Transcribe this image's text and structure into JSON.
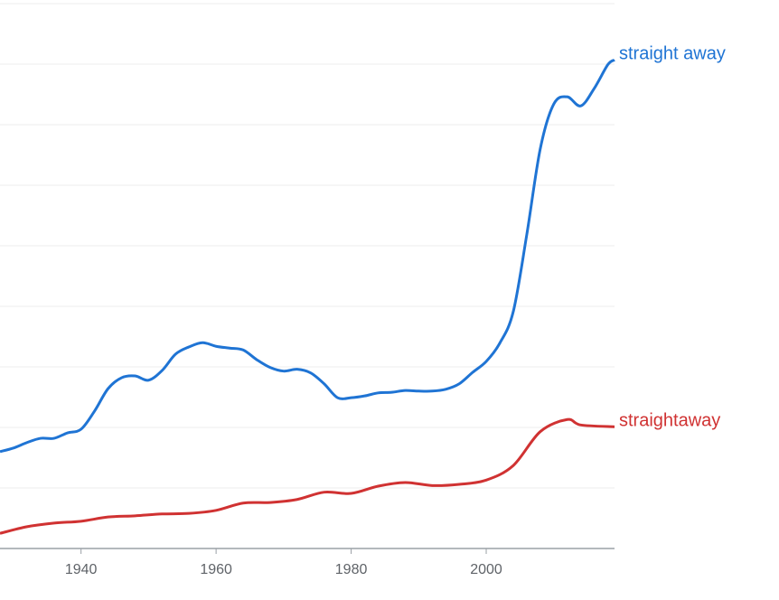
{
  "chart_data": {
    "type": "line",
    "xlim": [
      1928,
      2019
    ],
    "xticks": [
      1940,
      1960,
      1980,
      2000
    ],
    "ylim": [
      0,
      9
    ],
    "yticks": [
      0,
      1,
      2,
      3,
      4,
      5,
      6,
      7,
      8,
      9
    ],
    "grid": true,
    "series": [
      {
        "name": "straight away",
        "color": "#1f74d4",
        "x": [
          1928,
          1930,
          1932,
          1934,
          1936,
          1938,
          1940,
          1942,
          1944,
          1946,
          1948,
          1950,
          1952,
          1954,
          1956,
          1958,
          1960,
          1962,
          1964,
          1966,
          1968,
          1970,
          1972,
          1974,
          1976,
          1978,
          1980,
          1982,
          1984,
          1986,
          1988,
          1990,
          1992,
          1994,
          1996,
          1998,
          2000,
          2002,
          2004,
          2006,
          2008,
          2010,
          2012,
          2014,
          2016,
          2018,
          2019
        ],
        "values": [
          1.6,
          1.66,
          1.75,
          1.82,
          1.82,
          1.91,
          1.97,
          2.27,
          2.64,
          2.82,
          2.85,
          2.78,
          2.94,
          3.21,
          3.33,
          3.4,
          3.34,
          3.31,
          3.28,
          3.12,
          2.99,
          2.93,
          2.96,
          2.9,
          2.72,
          2.49,
          2.49,
          2.52,
          2.57,
          2.58,
          2.61,
          2.6,
          2.6,
          2.63,
          2.72,
          2.91,
          3.09,
          3.39,
          3.91,
          5.18,
          6.6,
          7.34,
          7.46,
          7.31,
          7.6,
          7.99,
          8.07
        ]
      },
      {
        "name": "straightaway",
        "color": "#d03232",
        "x": [
          1928,
          1932,
          1936,
          1940,
          1944,
          1948,
          1952,
          1956,
          1960,
          1964,
          1968,
          1972,
          1976,
          1980,
          1984,
          1988,
          1992,
          1996,
          2000,
          2004,
          2008,
          2012,
          2014,
          2019
        ],
        "values": [
          0.25,
          0.36,
          0.42,
          0.45,
          0.52,
          0.54,
          0.57,
          0.58,
          0.63,
          0.75,
          0.76,
          0.81,
          0.93,
          0.91,
          1.03,
          1.09,
          1.04,
          1.06,
          1.13,
          1.37,
          1.93,
          2.13,
          2.04,
          2.01
        ]
      }
    ]
  }
}
